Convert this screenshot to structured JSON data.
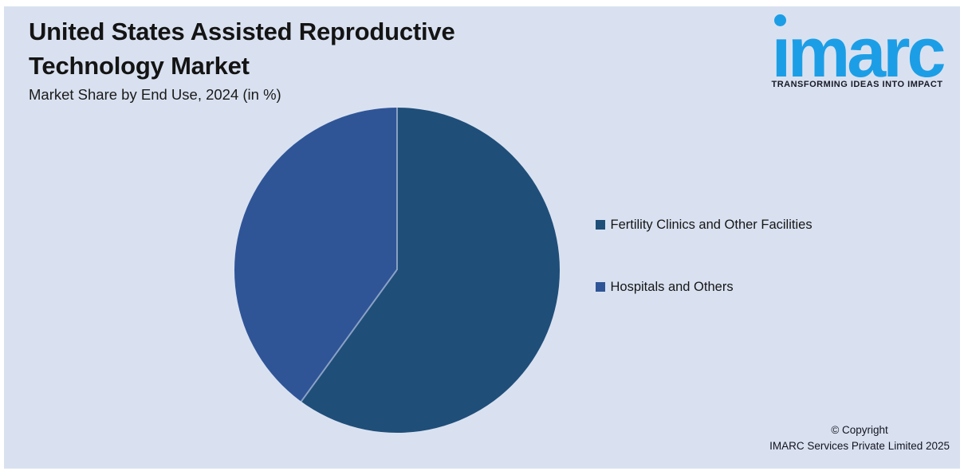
{
  "header": {
    "title": "United States Assisted Reproductive Technology Market",
    "subtitle": "Market Share by End Use, 2024 (in %)"
  },
  "logo": {
    "wordmark": "imarc",
    "tagline": "TRANSFORMING IDEAS INTO IMPACT",
    "brand_color": "#1C9EE6"
  },
  "chart_data": {
    "type": "pie",
    "title": "United States Assisted Reproductive Technology Market",
    "subtitle": "Market Share by End Use, 2024 (in %)",
    "categories": [
      "Fertility Clinics and Other Facilities",
      "Hospitals and Others"
    ],
    "values": [
      60,
      40
    ],
    "unit": "%",
    "colors": [
      "#1F4E79",
      "#2F5597"
    ],
    "data_labels_shown": false,
    "legend_position": "right",
    "start_angle_deg": 0,
    "direction": "clockwise"
  },
  "legend": {
    "items": [
      {
        "label": "Fertility Clinics and Other Facilities",
        "color": "#1F4E79"
      },
      {
        "label": "Hospitals and Others",
        "color": "#2F5597"
      }
    ]
  },
  "footer": {
    "copyright_line1": "© Copyright",
    "copyright_line2": "IMARC Services Private Limited 2025"
  },
  "colors": {
    "background": "#D9E1F0",
    "frame": "#FFFFFF",
    "title_text": "#141414"
  }
}
